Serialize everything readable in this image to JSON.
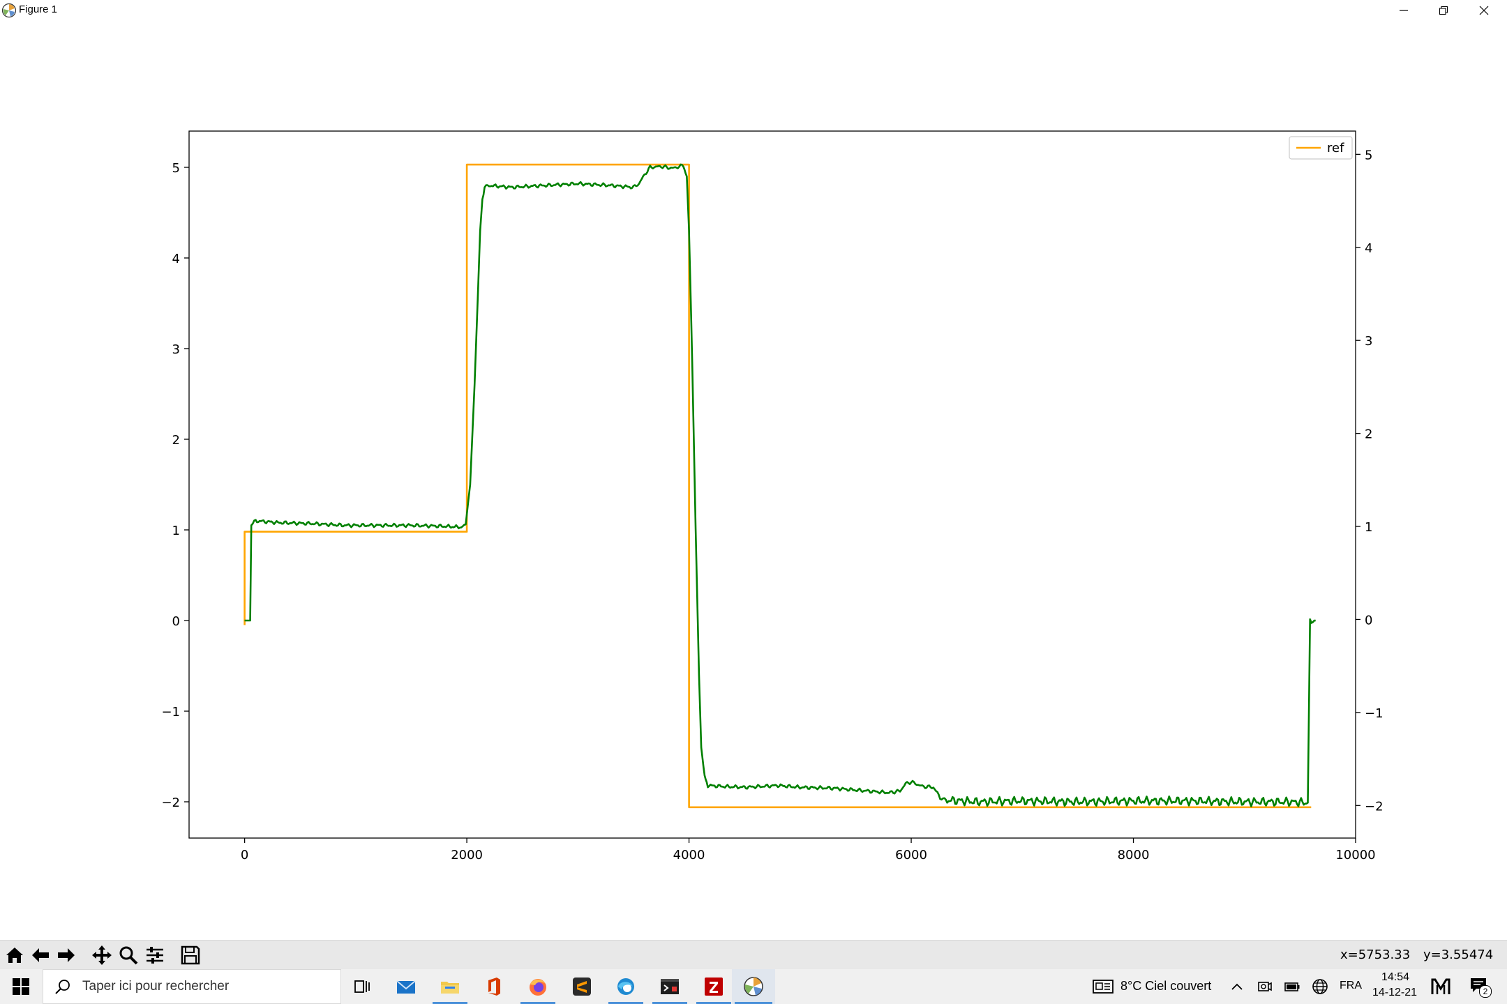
{
  "window": {
    "title": "Figure 1",
    "controls": [
      "minimize",
      "restore",
      "close"
    ]
  },
  "chart_data": {
    "type": "line",
    "title": "",
    "xlabel": "",
    "ylabel": "",
    "xlim": [
      -500,
      10000
    ],
    "ylim": [
      -2.4,
      5.4
    ],
    "x_ticks": [
      0,
      2000,
      4000,
      6000,
      8000,
      10000
    ],
    "y_ticks_left": [
      -2,
      -1,
      0,
      1,
      2,
      3,
      4,
      5
    ],
    "y_ticks_right": [
      -2,
      -1,
      0,
      1,
      2,
      3,
      4,
      5
    ],
    "grid": false,
    "legend": {
      "location": "upper right",
      "entries": [
        "ref"
      ]
    },
    "colors": {
      "ref": "#ffa500",
      "response": "#008000"
    },
    "series": [
      {
        "name": "ref",
        "color": "#ffa500",
        "points": [
          [
            0,
            -0.05
          ],
          [
            0,
            0.98
          ],
          [
            2000,
            0.98
          ],
          [
            2000,
            5.03
          ],
          [
            4000,
            5.03
          ],
          [
            4000,
            -2.06
          ],
          [
            9600,
            -2.06
          ]
        ]
      },
      {
        "color": "#008000",
        "points": [
          [
            0,
            0
          ],
          [
            50,
            0
          ],
          [
            60,
            1.05
          ],
          [
            100,
            1.1
          ],
          [
            300,
            1.08
          ],
          [
            600,
            1.07
          ],
          [
            900,
            1.05
          ],
          [
            1200,
            1.05
          ],
          [
            1500,
            1.05
          ],
          [
            1800,
            1.04
          ],
          [
            1950,
            1.03
          ],
          [
            1990,
            1.06
          ],
          [
            2030,
            1.5
          ],
          [
            2070,
            2.6
          ],
          [
            2100,
            3.6
          ],
          [
            2120,
            4.3
          ],
          [
            2140,
            4.65
          ],
          [
            2160,
            4.78
          ],
          [
            2200,
            4.8
          ],
          [
            2400,
            4.78
          ],
          [
            2700,
            4.8
          ],
          [
            3000,
            4.82
          ],
          [
            3300,
            4.8
          ],
          [
            3500,
            4.78
          ],
          [
            3550,
            4.82
          ],
          [
            3600,
            4.92
          ],
          [
            3650,
            5.0
          ],
          [
            3750,
            5.01
          ],
          [
            3850,
            4.99
          ],
          [
            3950,
            5.02
          ],
          [
            3980,
            4.9
          ],
          [
            4000,
            4.3
          ],
          [
            4030,
            2.8
          ],
          [
            4060,
            1.0
          ],
          [
            4090,
            -0.6
          ],
          [
            4110,
            -1.4
          ],
          [
            4140,
            -1.72
          ],
          [
            4170,
            -1.82
          ],
          [
            4300,
            -1.83
          ],
          [
            4500,
            -1.84
          ],
          [
            4800,
            -1.82
          ],
          [
            5000,
            -1.84
          ],
          [
            5300,
            -1.85
          ],
          [
            5500,
            -1.87
          ],
          [
            5800,
            -1.9
          ],
          [
            5900,
            -1.88
          ],
          [
            5950,
            -1.8
          ],
          [
            6000,
            -1.78
          ],
          [
            6100,
            -1.83
          ],
          [
            6200,
            -1.84
          ],
          [
            6260,
            -1.95
          ],
          [
            6300,
            -1.98
          ],
          [
            6600,
            -2.0
          ],
          [
            7000,
            -1.99
          ],
          [
            7500,
            -2.0
          ],
          [
            8000,
            -1.99
          ],
          [
            8500,
            -1.99
          ],
          [
            9000,
            -2.0
          ],
          [
            9400,
            -2.0
          ],
          [
            9570,
            -2.01
          ],
          [
            9580,
            -1.0
          ],
          [
            9590,
            0.0
          ],
          [
            9640,
            0.0
          ]
        ]
      }
    ]
  },
  "mpl_toolbar": {
    "buttons": [
      "home-icon",
      "back-icon",
      "forward-icon",
      "pan-icon",
      "zoom-icon",
      "configure-icon",
      "save-icon"
    ],
    "coord_x": "x=5753.33",
    "coord_y": "y=3.55474"
  },
  "taskbar": {
    "search_placeholder": "Taper ici pour rechercher",
    "weather": "8°C  Ciel couvert",
    "language": "FRA",
    "time": "14:54",
    "date": "14-12-21",
    "notification_count": "2"
  }
}
